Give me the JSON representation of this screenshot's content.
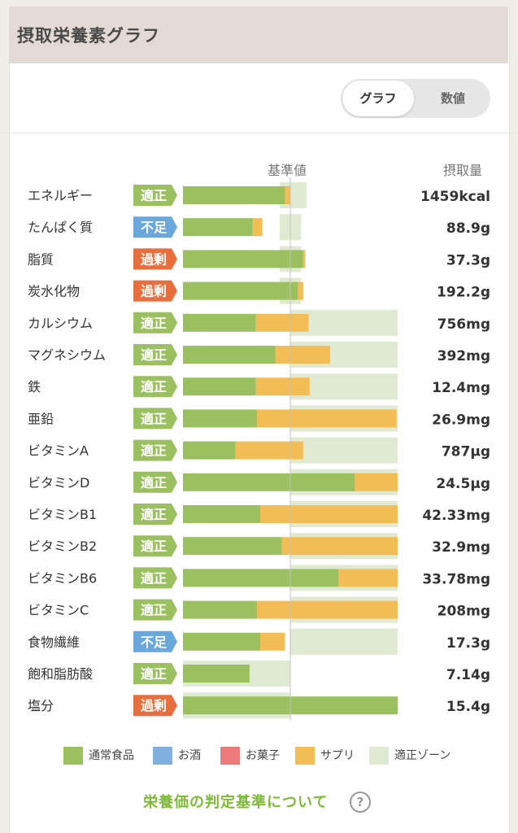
{
  "header": {
    "title": "摂取栄養素グラフ"
  },
  "view_toggle": {
    "graph_label": "グラフ",
    "number_label": "数値",
    "selected": "グラフ"
  },
  "columns": {
    "reference": "基準値",
    "intake": "摂取量"
  },
  "colors": {
    "normal_food": "#9bc05f",
    "alcohol": "#7fb0de",
    "snack": "#ee7b79",
    "supplement": "#f3bd55",
    "proper_zone": "#e0ead2",
    "status_proper": "#9bc05f",
    "status_short": "#6aa8dc",
    "status_excess": "#e96e3d"
  },
  "chart_data": {
    "type": "bar",
    "orientation": "horizontal",
    "stacked": true,
    "x_unit": "ratio of reference value (1.0 = 基準値)",
    "rows": [
      {
        "name": "エネルギー",
        "status": "適正",
        "food": 0.95,
        "supplement": 0.05,
        "zone": [
          0.9,
          1.15
        ],
        "intake": "1459kcal"
      },
      {
        "name": "たんぱく質",
        "status": "不足",
        "food": 0.65,
        "supplement": 0.09,
        "zone": [
          0.9,
          1.1
        ],
        "intake": "88.9g"
      },
      {
        "name": "脂質",
        "status": "過剰",
        "food": 1.12,
        "supplement": 0.02,
        "zone": [
          0.9,
          1.1
        ],
        "intake": "37.3g"
      },
      {
        "name": "炭水化物",
        "status": "過剰",
        "food": 1.07,
        "supplement": 0.05,
        "zone": [
          0.9,
          1.1
        ],
        "intake": "192.2g"
      },
      {
        "name": "カルシウム",
        "status": "適正",
        "food": 0.68,
        "supplement": 0.49,
        "zone": [
          1.0,
          2.0
        ],
        "intake": "756mg"
      },
      {
        "name": "マグネシウム",
        "status": "適正",
        "food": 0.86,
        "supplement": 0.51,
        "zone": [
          1.0,
          2.0
        ],
        "intake": "392mg"
      },
      {
        "name": "鉄",
        "status": "適正",
        "food": 0.68,
        "supplement": 0.5,
        "zone": [
          1.0,
          2.0
        ],
        "intake": "12.4mg"
      },
      {
        "name": "亜鉛",
        "status": "適正",
        "food": 0.69,
        "supplement": 1.3,
        "zone": [
          1.0,
          2.0
        ],
        "intake": "26.9mg"
      },
      {
        "name": "ビタミンA",
        "status": "適正",
        "food": 0.49,
        "supplement": 0.63,
        "zone": [
          1.0,
          2.0
        ],
        "intake": "787µg"
      },
      {
        "name": "ビタミンD",
        "status": "適正",
        "food": 1.6,
        "supplement": 0.4,
        "zone": [
          1.0,
          2.0
        ],
        "intake": "24.5µg"
      },
      {
        "name": "ビタミンB1",
        "status": "適正",
        "food": 0.72,
        "supplement": 1.28,
        "zone": [
          1.0,
          2.0
        ],
        "intake": "42.33mg"
      },
      {
        "name": "ビタミンB2",
        "status": "適正",
        "food": 0.92,
        "supplement": 1.08,
        "zone": [
          1.0,
          2.0
        ],
        "intake": "32.9mg"
      },
      {
        "name": "ビタミンB6",
        "status": "適正",
        "food": 1.45,
        "supplement": 0.55,
        "zone": [
          1.0,
          2.0
        ],
        "intake": "33.78mg"
      },
      {
        "name": "ビタミンC",
        "status": "適正",
        "food": 0.69,
        "supplement": 1.31,
        "zone": [
          1.0,
          2.0
        ],
        "intake": "208mg"
      },
      {
        "name": "食物繊維",
        "status": "不足",
        "food": 0.72,
        "supplement": 0.23,
        "zone": [
          1.0,
          2.0
        ],
        "intake": "17.3g"
      },
      {
        "name": "飽和脂肪酸",
        "status": "適正",
        "food": 0.62,
        "supplement": 0,
        "zone": [
          0,
          1.0
        ],
        "intake": "7.14g"
      },
      {
        "name": "塩分",
        "status": "過剰",
        "food": 2.0,
        "supplement": 0,
        "zone": [
          0,
          1.0
        ],
        "intake": "15.4g"
      }
    ],
    "legend": [
      {
        "label": "通常食品",
        "color": "#9bc05f"
      },
      {
        "label": "お酒",
        "color": "#7fb0de"
      },
      {
        "label": "お菓子",
        "color": "#ee7b79"
      },
      {
        "label": "サプリ",
        "color": "#f3bd55"
      },
      {
        "label": "適正ゾーン",
        "color": "#e0ead2"
      }
    ]
  },
  "footer": {
    "link_label": "栄養価の判定基準について",
    "help_icon": "question-circle-icon",
    "help_glyph": "?"
  }
}
